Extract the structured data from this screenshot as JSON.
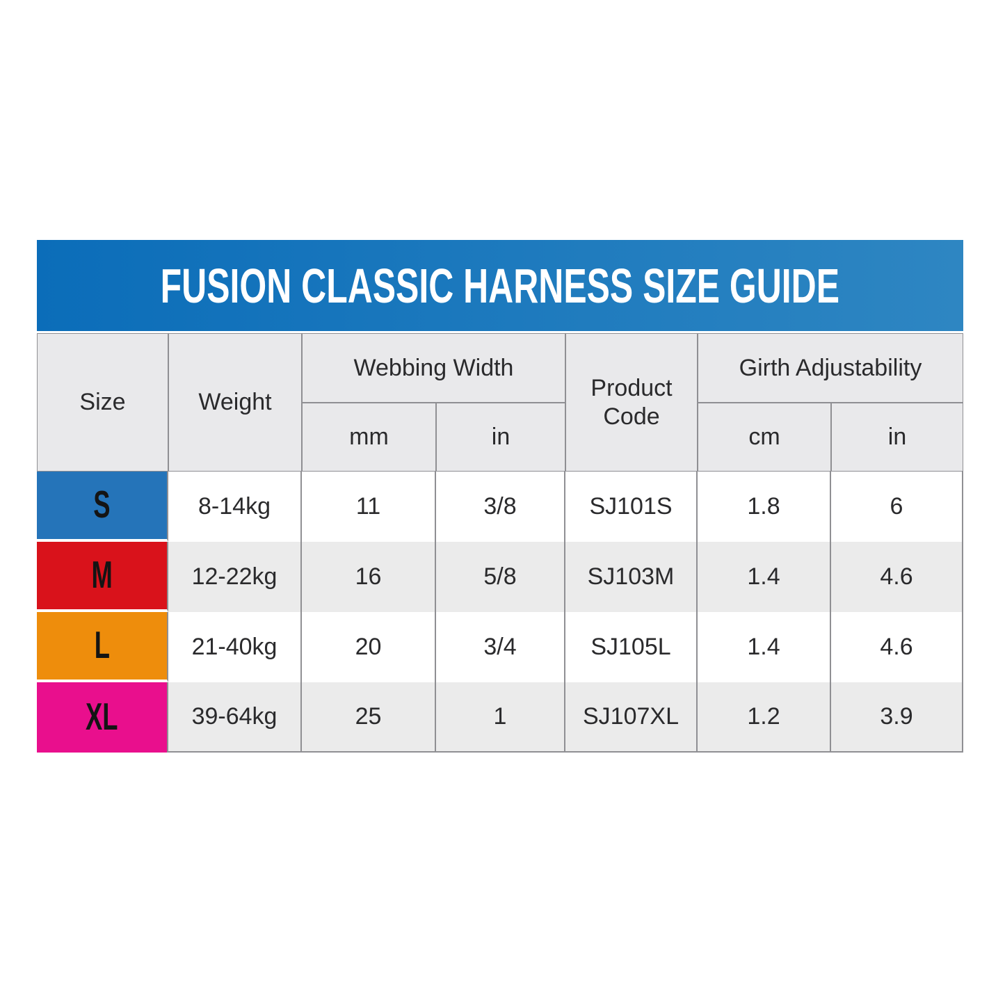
{
  "banner": {
    "title": "FUSION CLASSIC HARNESS SIZE GUIDE",
    "bg_gradient_left": "#0b6db9",
    "bg_gradient_right": "#2e86c2",
    "text_color": "#ffffff"
  },
  "table": {
    "headers": {
      "size": "Size",
      "weight": "Weight",
      "webbing_width": "Webbing Width",
      "webbing_mm": "mm",
      "webbing_in": "in",
      "product_code": "Product Code",
      "girth_adjustability": "Girth Adjustability",
      "girth_cm": "cm",
      "girth_in": "in"
    },
    "rows": [
      {
        "size": "S",
        "size_color": "#2574b9",
        "weight": "8-14kg",
        "webbing_mm": "11",
        "webbing_in": "3/8",
        "product_code": "SJ101S",
        "girth_cm": "1.8",
        "girth_in": "6"
      },
      {
        "size": "M",
        "size_color": "#d9121b",
        "weight": "12-22kg",
        "webbing_mm": "16",
        "webbing_in": "5/8",
        "product_code": "SJ103M",
        "girth_cm": "1.4",
        "girth_in": "4.6"
      },
      {
        "size": "L",
        "size_color": "#ee8d0c",
        "weight": "21-40kg",
        "webbing_mm": "20",
        "webbing_in": "3/4",
        "product_code": "SJ105L",
        "girth_cm": "1.4",
        "girth_in": "4.6"
      },
      {
        "size": "XL",
        "size_color": "#e90f8d",
        "weight": "39-64kg",
        "webbing_mm": "25",
        "webbing_in": "1",
        "product_code": "SJ107XL",
        "girth_cm": "1.2",
        "girth_in": "3.9"
      }
    ],
    "styles": {
      "header_bg": "#e9e9eb",
      "row_bg": "#ffffff",
      "row_alt_bg": "#ebebeb",
      "border_color": "#8f8f93",
      "text_color": "#2a2a2c",
      "size_letter_color": "#141414"
    }
  }
}
